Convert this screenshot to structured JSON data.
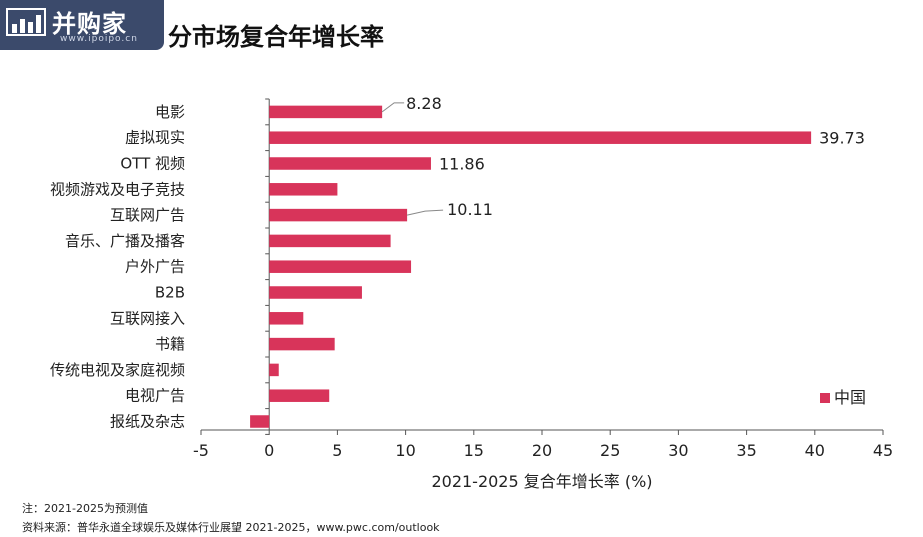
{
  "header": {
    "logo_name": "并购家",
    "logo_url": "www.ipoipo.cn"
  },
  "title": "分市场复合年增长率",
  "chart_data": {
    "type": "bar",
    "orientation": "horizontal",
    "categories": [
      "电影",
      "虚拟现实",
      "OTT 视频",
      "视频游戏及电子竞技",
      "互联网广告",
      "音乐、广播及播客",
      "户外广告",
      "B2B",
      "互联网接入",
      "书籍",
      "传统电视及家庭视频",
      "电视广告",
      "报纸及杂志"
    ],
    "series": [
      {
        "name": "中国",
        "color": "#d8345a",
        "values": [
          8.28,
          39.73,
          11.86,
          5.0,
          10.11,
          8.9,
          10.4,
          6.8,
          2.5,
          4.8,
          0.7,
          4.4,
          -1.4
        ]
      }
    ],
    "data_labels": {
      "0": "8.28",
      "1": "39.73",
      "2": "11.86",
      "4": "10.11"
    },
    "xlabel": "2021-2025 复合年增长率 (%)",
    "xlim": [
      -5,
      45
    ],
    "xticks": [
      -5,
      0,
      5,
      10,
      15,
      20,
      25,
      30,
      35,
      40,
      45
    ],
    "legend_position": "bottom-right",
    "grid": false
  },
  "footnotes": {
    "note": "注：2021-2025为预测值",
    "source": "资料来源：普华永道全球娱乐及媒体行业展望 2021-2025，www.pwc.com/outlook"
  }
}
